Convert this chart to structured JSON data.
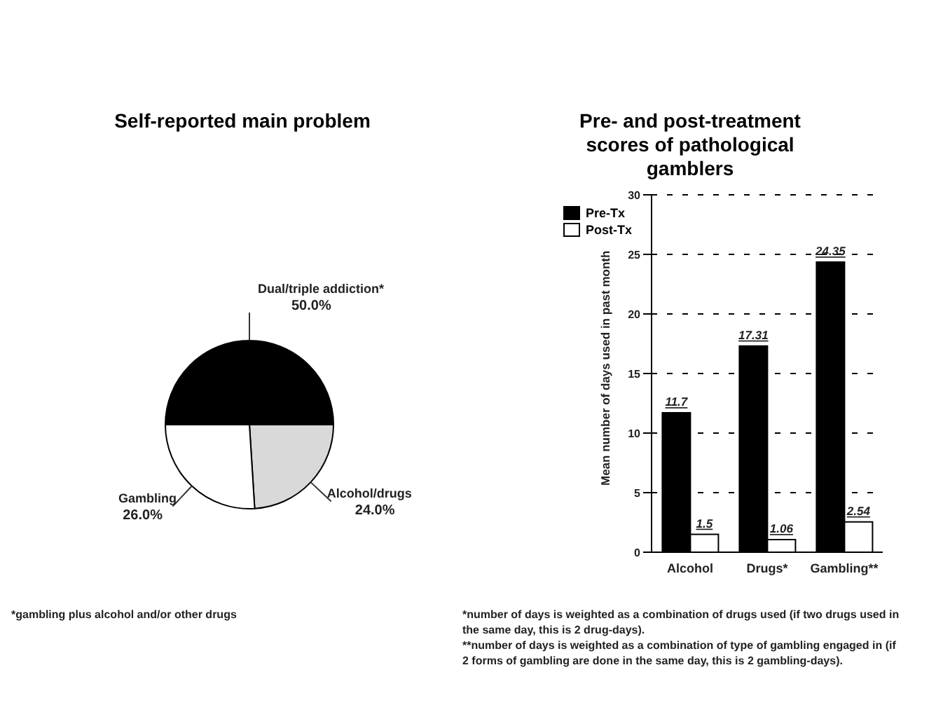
{
  "chart_data": [
    {
      "type": "pie",
      "title": "Self-reported main problem",
      "categories": [
        "Dual/triple addiction*",
        "Alcohol/drugs",
        "Gambling"
      ],
      "values": [
        50,
        24,
        26
      ],
      "value_labels": [
        "50.0%",
        "24.0%",
        "26.0%"
      ],
      "colors": [
        "#000000",
        "#d9d9d9",
        "#ffffff"
      ],
      "legend": false,
      "annotations": [
        "*gambling plus alcohol and/or other drugs"
      ]
    },
    {
      "type": "bar",
      "title": "Pre- and post-treatment scores of pathological gamblers",
      "ylabel": "Mean number of days used in past month",
      "categories": [
        "Alcohol",
        "Drugs*",
        "Gambling**"
      ],
      "series": [
        {
          "name": "Pre-Tx",
          "color": "#000000",
          "values": [
            11.7,
            17.31,
            24.35
          ]
        },
        {
          "name": "Post-Tx",
          "color": "#ffffff",
          "values": [
            1.5,
            1.06,
            2.54
          ]
        }
      ],
      "ylim": [
        0,
        30
      ],
      "yticks": [
        0,
        5,
        10,
        15,
        20,
        25,
        30
      ],
      "grid": "y",
      "legend": "top left",
      "data_labels": true,
      "annotations": [
        "*number of days is weighted as a combination of drugs used (if two drugs  used in the same day, this is 2 drug-days).",
        "**number of days is weighted as a combination of type of gambling engaged in (if 2 forms of gambling are done in the same day, this  is 2 gambling-days)."
      ]
    }
  ]
}
